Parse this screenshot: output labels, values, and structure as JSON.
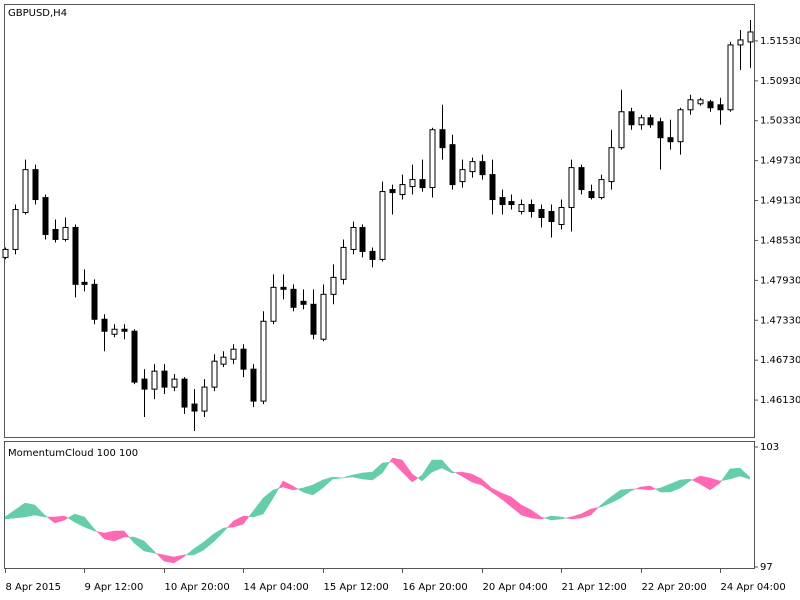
{
  "chart_data": [
    {
      "type": "candlestick",
      "title": "GBPUSD,H4",
      "categories": [
        "8 Apr 2015",
        null,
        null,
        null,
        null,
        null,
        null,
        null,
        "9 Apr 12:00",
        null,
        null,
        null,
        null,
        null,
        null,
        null,
        "10 Apr 20:00",
        null,
        null,
        null,
        null,
        null,
        null,
        null,
        "14 Apr 04:00",
        null,
        null,
        null,
        null,
        null,
        null,
        null,
        "15 Apr 12:00",
        null,
        null,
        null,
        null,
        null,
        null,
        null,
        "16 Apr 20:00",
        null,
        null,
        null,
        null,
        null,
        null,
        null,
        "20 Apr 04:00",
        null,
        null,
        null,
        null,
        null,
        null,
        null,
        "21 Apr 12:00",
        null,
        null,
        null,
        null,
        null,
        null,
        null,
        "22 Apr 20:00",
        null,
        null,
        null,
        null,
        null,
        null,
        null,
        "24 Apr 04:00",
        null,
        null,
        null
      ],
      "open": [
        1.48275,
        1.48395,
        1.4895,
        1.49595,
        1.49175,
        1.48695,
        1.48545,
        1.48725,
        1.479,
        1.4787,
        1.47345,
        1.4712,
        1.47195,
        1.47165,
        1.46445,
        1.46295,
        1.46565,
        1.46325,
        1.46445,
        1.4607,
        1.45965,
        1.46325,
        1.4667,
        1.46745,
        1.46895,
        1.46595,
        1.46115,
        1.47315,
        1.47825,
        1.47795,
        1.47615,
        1.4757,
        1.47045,
        1.4772,
        1.47945,
        1.48395,
        1.48725,
        1.48365,
        1.48245,
        1.49295,
        1.4922,
        1.4934,
        1.49445,
        1.49325,
        1.50195,
        1.4997,
        1.49415,
        1.49565,
        1.49715,
        1.4952,
        1.49175,
        1.49115,
        1.48965,
        1.4907,
        1.48995,
        1.48965,
        1.4877,
        1.49025,
        1.49625,
        1.49265,
        1.49175,
        1.49415,
        1.49925,
        1.50465,
        1.5027,
        1.50375,
        1.50315,
        1.50075,
        1.50015,
        1.50495,
        1.50585,
        1.50615,
        1.5057,
        1.50495,
        1.5147,
        1.51515
      ],
      "high": [
        1.48425,
        1.4907,
        1.49745,
        1.4967,
        1.4922,
        1.48845,
        1.48875,
        1.4877,
        1.48095,
        1.47945,
        1.4742,
        1.4727,
        1.4727,
        1.47195,
        1.46595,
        1.4667,
        1.4667,
        1.4652,
        1.46475,
        1.46295,
        1.46445,
        1.4682,
        1.46865,
        1.4697,
        1.4697,
        1.4667,
        1.47465,
        1.4802,
        1.4802,
        1.4787,
        1.47795,
        1.47795,
        1.4787,
        1.4817,
        1.48545,
        1.48815,
        1.4877,
        1.48425,
        1.49415,
        1.4937,
        1.4952,
        1.4967,
        1.49745,
        1.50225,
        1.5057,
        1.5012,
        1.49745,
        1.49775,
        1.4982,
        1.49745,
        1.49295,
        1.4922,
        1.49145,
        1.49145,
        1.4907,
        1.4907,
        1.49145,
        1.49745,
        1.4967,
        1.4937,
        1.4952,
        1.50195,
        1.50795,
        1.50525,
        1.5042,
        1.5042,
        1.50375,
        1.50345,
        1.50525,
        1.5072,
        1.50675,
        1.50645,
        1.50675,
        1.51515,
        1.51695,
        1.51845
      ],
      "low": [
        1.48245,
        1.4832,
        1.4892,
        1.4907,
        1.48545,
        1.485,
        1.48515,
        1.47675,
        1.47765,
        1.4727,
        1.46865,
        1.47075,
        1.47045,
        1.4637,
        1.45875,
        1.46145,
        1.4622,
        1.46265,
        1.4592,
        1.45665,
        1.45875,
        1.46265,
        1.46625,
        1.4667,
        1.46475,
        1.46025,
        1.4607,
        1.4727,
        1.47645,
        1.47465,
        1.47495,
        1.47045,
        1.47015,
        1.4757,
        1.4787,
        1.4832,
        1.48275,
        1.48125,
        1.48215,
        1.4892,
        1.49145,
        1.4922,
        1.49265,
        1.49175,
        1.49745,
        1.49295,
        1.49325,
        1.49475,
        1.49445,
        1.4892,
        1.4892,
        1.48995,
        1.4892,
        1.48875,
        1.48725,
        1.48575,
        1.48695,
        1.48665,
        1.4922,
        1.49145,
        1.49145,
        1.49295,
        1.49895,
        1.50195,
        1.50195,
        1.50225,
        1.49595,
        1.49895,
        1.4982,
        1.5042,
        1.50555,
        1.50465,
        1.5027,
        1.50465,
        1.51095,
        1.51125
      ],
      "close": [
        1.48395,
        1.48995,
        1.49595,
        1.49145,
        1.4862,
        1.48545,
        1.48725,
        1.4787,
        1.4787,
        1.47345,
        1.47165,
        1.47195,
        1.47165,
        1.464,
        1.46295,
        1.46565,
        1.46325,
        1.46445,
        1.46025,
        1.45965,
        1.46325,
        1.46715,
        1.46775,
        1.46895,
        1.46595,
        1.46115,
        1.47315,
        1.47825,
        1.47795,
        1.47525,
        1.4757,
        1.4712,
        1.4772,
        1.47975,
        1.48425,
        1.48725,
        1.48365,
        1.48245,
        1.49265,
        1.4925,
        1.4937,
        1.49445,
        1.49325,
        1.50195,
        1.49925,
        1.4937,
        1.49595,
        1.49715,
        1.4952,
        1.49145,
        1.4907,
        1.4907,
        1.4907,
        1.48965,
        1.48875,
        1.48815,
        1.49025,
        1.49625,
        1.49295,
        1.49175,
        1.49445,
        1.49925,
        1.50465,
        1.5027,
        1.50375,
        1.5027,
        1.50075,
        1.50015,
        1.50495,
        1.50645,
        1.50645,
        1.50525,
        1.50495,
        1.5147,
        1.51545,
        1.51665
      ],
      "up_color": "#ffffff",
      "down_color": "#000000",
      "ylim": [
        1.45575,
        1.52085
      ],
      "yticks": [
        {
          "value": 1.4613,
          "label": "1.46130"
        },
        {
          "value": 1.4673,
          "label": "1.46730"
        },
        {
          "value": 1.4733,
          "label": "1.47330"
        },
        {
          "value": 1.4793,
          "label": "1.47930"
        },
        {
          "value": 1.4853,
          "label": "1.48530"
        },
        {
          "value": 1.4913,
          "label": "1.49130"
        },
        {
          "value": 1.4973,
          "label": "1.49730"
        },
        {
          "value": 1.5033,
          "label": "1.50330"
        },
        {
          "value": 1.5093,
          "label": "1.50930"
        },
        {
          "value": 1.5153,
          "label": "1.51530"
        }
      ]
    },
    {
      "type": "cloud",
      "title": "MomentumCloud 100 100",
      "series": [
        {
          "color": "#66cdaa",
          "values": [
            99.5,
            99.85,
            100.2,
            100.1,
            99.6,
            99.2,
            99.35,
            99.65,
            99.5,
            98.9,
            98.4,
            98.3,
            98.5,
            98.5,
            98.3,
            97.8,
            97.3,
            97.2,
            97.5,
            97.9,
            98.25,
            98.65,
            98.95,
            99.0,
            99.15,
            99.8,
            100.45,
            100.85,
            101.0,
            100.85,
            100.95,
            101.1,
            101.35,
            101.5,
            101.45,
            101.6,
            101.7,
            101.75,
            102.2,
            102.25,
            101.75,
            101.25,
            101.6,
            102.35,
            102.35,
            101.8,
            101.55,
            101.25,
            101.1,
            100.75,
            100.4,
            100.0,
            99.6,
            99.45,
            99.4,
            99.55,
            99.5,
            99.4,
            99.45,
            99.6,
            100.1,
            100.5,
            100.85,
            100.9,
            100.9,
            100.85,
            100.95,
            101.15,
            101.35,
            101.4,
            101.15,
            100.85,
            101.2,
            101.9,
            101.95,
            101.5
          ]
        },
        {
          "color": "#ff69b4",
          "values": [
            99.4,
            99.45,
            99.5,
            99.6,
            99.5,
            99.5,
            99.55,
            99.25,
            99.0,
            98.8,
            98.7,
            98.8,
            98.8,
            98.2,
            97.8,
            97.7,
            97.6,
            97.5,
            97.6,
            97.6,
            97.85,
            98.25,
            98.75,
            99.3,
            99.55,
            99.5,
            99.65,
            100.45,
            101.3,
            101.05,
            100.75,
            100.6,
            100.95,
            101.4,
            101.45,
            101.5,
            101.4,
            101.35,
            101.7,
            102.45,
            102.35,
            101.65,
            101.3,
            101.75,
            101.95,
            101.7,
            101.75,
            101.65,
            101.4,
            100.95,
            100.7,
            100.5,
            100.1,
            99.85,
            99.5,
            99.35,
            99.4,
            99.5,
            99.65,
            99.9,
            100.0,
            100.2,
            100.45,
            100.8,
            101.0,
            101.05,
            100.75,
            100.75,
            100.95,
            101.3,
            101.55,
            101.45,
            101.3,
            101.4,
            101.55,
            101.4
          ]
        }
      ],
      "ylim": [
        97,
        103
      ],
      "yticks": [
        97,
        103
      ]
    }
  ]
}
